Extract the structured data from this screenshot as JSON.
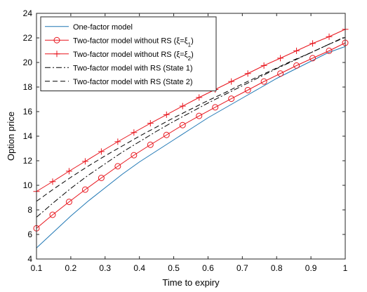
{
  "chart_data": {
    "type": "line",
    "xlabel": "Time to expiry",
    "ylabel": "Option price",
    "xlim": [
      0.1,
      1
    ],
    "ylim": [
      4,
      24
    ],
    "xticks": [
      "0.1",
      "0.2",
      "0.3",
      "0.4",
      "0.5",
      "0.6",
      "0.7",
      "0.8",
      "0.9",
      "1"
    ],
    "yticks": [
      "4",
      "6",
      "8",
      "10",
      "12",
      "14",
      "16",
      "18",
      "20",
      "22",
      "24"
    ],
    "grid": false,
    "legend_position": "top-left",
    "series": [
      {
        "name": "One-factor model",
        "color": "#1f77b4",
        "style": "solid",
        "marker": "none",
        "x": [
          0.1,
          0.15,
          0.2,
          0.25,
          0.3,
          0.35,
          0.4,
          0.45,
          0.5,
          0.55,
          0.6,
          0.65,
          0.7,
          0.75,
          0.8,
          0.85,
          0.9,
          0.95,
          1.0
        ],
        "y": [
          4.9,
          6.2,
          7.5,
          8.7,
          9.8,
          10.9,
          11.9,
          12.8,
          13.7,
          14.6,
          15.5,
          16.3,
          17.1,
          17.9,
          18.7,
          19.4,
          20.1,
          20.8,
          21.3
        ]
      },
      {
        "name": "Two-factor model without RS (ξ=ξ",
        "name_sub": "1",
        "name_suffix": ")",
        "color": "#e8141c",
        "style": "solid",
        "marker": "circle",
        "x": [
          0.1,
          0.147,
          0.195,
          0.242,
          0.289,
          0.337,
          0.384,
          0.432,
          0.479,
          0.526,
          0.574,
          0.621,
          0.668,
          0.716,
          0.763,
          0.811,
          0.858,
          0.905,
          0.953,
          1.0
        ],
        "y": [
          6.5,
          7.6,
          8.65,
          9.65,
          10.6,
          11.55,
          12.45,
          13.3,
          14.1,
          14.9,
          15.65,
          16.35,
          17.05,
          17.75,
          18.45,
          19.1,
          19.75,
          20.35,
          20.95,
          21.6
        ]
      },
      {
        "name": "Two-factor model without RS (ξ=ξ",
        "name_sub": "2",
        "name_suffix": ")",
        "color": "#e8141c",
        "style": "solid",
        "marker": "plus",
        "x": [
          0.1,
          0.147,
          0.195,
          0.242,
          0.289,
          0.337,
          0.384,
          0.432,
          0.479,
          0.526,
          0.574,
          0.621,
          0.668,
          0.716,
          0.763,
          0.811,
          0.858,
          0.905,
          0.953,
          1.0
        ],
        "y": [
          9.5,
          10.3,
          11.15,
          11.95,
          12.75,
          13.55,
          14.3,
          15.05,
          15.75,
          16.45,
          17.15,
          17.8,
          18.45,
          19.1,
          19.75,
          20.35,
          20.95,
          21.55,
          22.1,
          22.7
        ]
      },
      {
        "name": "Two-factor model with RS (State 1)",
        "color": "#000000",
        "style": "dashdot",
        "marker": "none",
        "x": [
          0.1,
          0.15,
          0.2,
          0.25,
          0.3,
          0.35,
          0.4,
          0.45,
          0.5,
          0.55,
          0.6,
          0.65,
          0.7,
          0.75,
          0.8,
          0.85,
          0.9,
          0.95,
          1.0
        ],
        "y": [
          7.4,
          8.6,
          9.75,
          10.8,
          11.75,
          12.7,
          13.55,
          14.4,
          15.2,
          15.95,
          16.7,
          17.4,
          18.1,
          18.8,
          19.5,
          20.15,
          20.8,
          21.45,
          22.1
        ]
      },
      {
        "name": "Two-factor model with RS (State 2)",
        "color": "#000000",
        "style": "dashed",
        "marker": "none",
        "x": [
          0.1,
          0.15,
          0.2,
          0.25,
          0.3,
          0.35,
          0.4,
          0.45,
          0.5,
          0.55,
          0.6,
          0.65,
          0.7,
          0.75,
          0.8,
          0.85,
          0.9,
          0.95,
          1.0
        ],
        "y": [
          8.7,
          9.7,
          10.65,
          11.55,
          12.4,
          13.2,
          14.0,
          14.75,
          15.5,
          16.2,
          16.9,
          17.55,
          18.25,
          18.9,
          19.55,
          20.2,
          20.8,
          21.45,
          22.05
        ]
      }
    ]
  }
}
